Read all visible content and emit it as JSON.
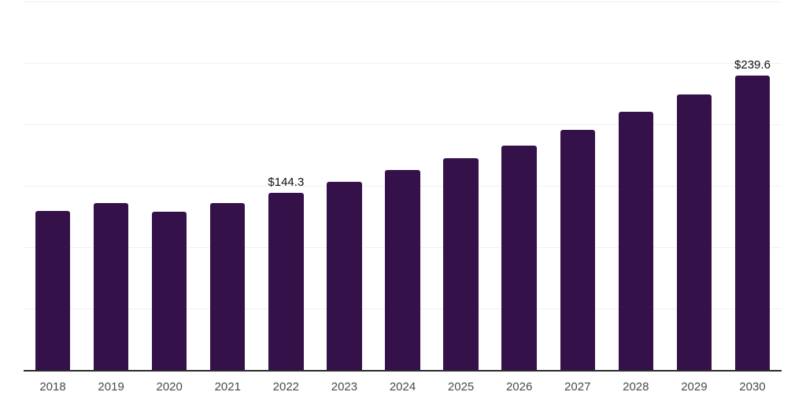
{
  "chart_data": {
    "type": "bar",
    "title": "",
    "xlabel": "",
    "ylabel": "",
    "categories": [
      "2018",
      "2019",
      "2020",
      "2021",
      "2022",
      "2023",
      "2024",
      "2025",
      "2026",
      "2027",
      "2028",
      "2029",
      "2030"
    ],
    "values": [
      129.5,
      136,
      129,
      136,
      144.3,
      153,
      163,
      172.5,
      183,
      195.5,
      210.5,
      224.5,
      239.6
    ],
    "annotations": [
      {
        "category": "2022",
        "text": "$144.3"
      },
      {
        "category": "2030",
        "text": "$239.6"
      }
    ],
    "ylim": [
      0,
      300
    ],
    "gridline_values": [
      50,
      100,
      150,
      200,
      250,
      300
    ],
    "grid": "horizontal, no y-axis tick labels",
    "legend": "none",
    "bar_color": "#35114a",
    "axis_color": "#2b2b2b",
    "gridline_color": "#f0f0f0",
    "tick_label_color": "#4a4a4a",
    "annotation_color": "#111111",
    "background_color": "#ffffff"
  }
}
